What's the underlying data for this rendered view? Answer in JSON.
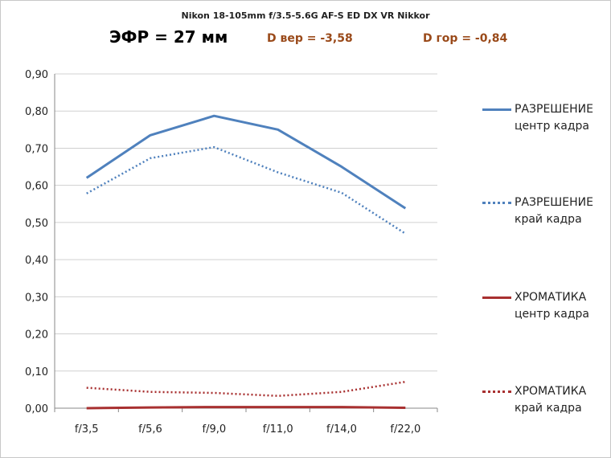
{
  "header": {
    "title": "Nikon 18-105mm f/3.5-5.6G AF-S ED DX VR Nikkor",
    "efr": "ЭФР = 27 мм",
    "d_ver": "D вер = -3,58",
    "d_gor": "D гор = -0,84"
  },
  "colors": {
    "accent_text": "#9a4a1a",
    "resolution": "#4f81bd",
    "chromatic": "#a83030",
    "grid": "#d0d0d0"
  },
  "legend": [
    {
      "line1": "РАЗРЕШЕНИЕ",
      "line2": "центр кадра"
    },
    {
      "line1": "РАЗРЕШЕНИЕ",
      "line2": "край кадра"
    },
    {
      "line1": "ХРОМАТИКА",
      "line2": "центр кадра"
    },
    {
      "line1": "ХРОМАТИКА",
      "line2": "край кадра"
    }
  ],
  "chart_data": {
    "type": "line",
    "title": "Nikon 18-105mm f/3.5-5.6G AF-S ED DX VR Nikkor",
    "xlabel": "",
    "ylabel": "",
    "ylim": [
      0,
      0.9
    ],
    "grid": true,
    "legend_position": "right",
    "categories": [
      "f/3,5",
      "f/5,6",
      "f/9,0",
      "f/11,0",
      "f/14,0",
      "f/22,0"
    ],
    "y_ticks": [
      "0,00",
      "0,10",
      "0,20",
      "0,30",
      "0,40",
      "0,50",
      "0,60",
      "0,70",
      "0,80",
      "0,90"
    ],
    "series": [
      {
        "name": "РАЗРЕШЕНИЕ центр кадра",
        "style": "solid",
        "color": "#4f81bd",
        "values": [
          0.62,
          0.735,
          0.787,
          0.75,
          0.65,
          0.538
        ]
      },
      {
        "name": "РАЗРЕШЕНИЕ край кадра",
        "style": "dotted",
        "color": "#4f81bd",
        "values": [
          0.578,
          0.673,
          0.703,
          0.635,
          0.58,
          0.47
        ]
      },
      {
        "name": "ХРОМАТИКА центр кадра",
        "style": "solid",
        "color": "#a83030",
        "values": [
          0.0,
          0.002,
          0.003,
          0.003,
          0.003,
          0.001
        ]
      },
      {
        "name": "ХРОМАТИКА край кадра",
        "style": "dotted",
        "color": "#a83030",
        "values": [
          0.055,
          0.044,
          0.041,
          0.033,
          0.044,
          0.071
        ]
      }
    ]
  }
}
